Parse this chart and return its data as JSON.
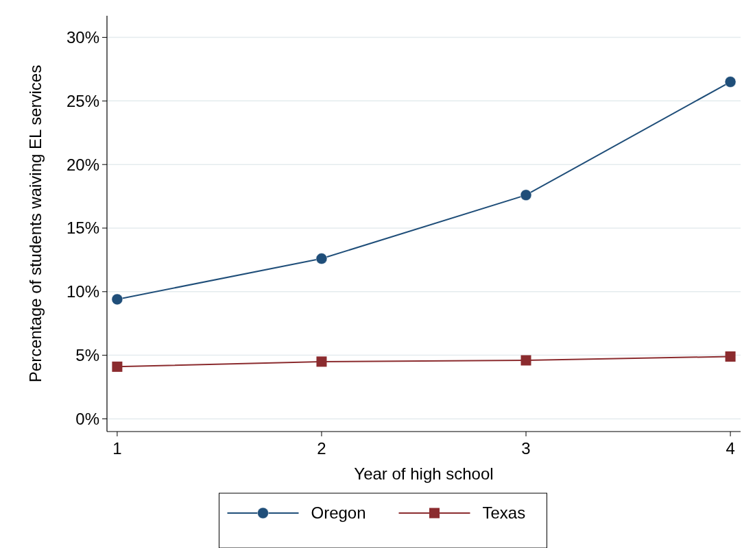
{
  "chart_data": {
    "type": "line",
    "xlabel": "Year of high school",
    "ylabel": "Percentage of students waiving EL services",
    "x": [
      1,
      2,
      3,
      4
    ],
    "series": [
      {
        "name": "Oregon",
        "color": "#1f4e79",
        "marker": "circle",
        "values": [
          9.4,
          12.6,
          17.6,
          26.5
        ]
      },
      {
        "name": "Texas",
        "color": "#8b2b2e",
        "marker": "square",
        "values": [
          4.1,
          4.5,
          4.6,
          4.9
        ]
      }
    ],
    "xlim": [
      0.95,
      4.05
    ],
    "xticks": [
      1,
      2,
      3,
      4
    ],
    "ylim": [
      -1,
      31.7
    ],
    "yticks": [
      {
        "value": 0,
        "label": "0%"
      },
      {
        "value": 5,
        "label": "5%"
      },
      {
        "value": 10,
        "label": "10%"
      },
      {
        "value": 15,
        "label": "15%"
      },
      {
        "value": 20,
        "label": "20%"
      },
      {
        "value": 25,
        "label": "25%"
      },
      {
        "value": 30,
        "label": "30%"
      }
    ],
    "grid": "y",
    "legend": "bottom",
    "line_style": "solid"
  }
}
